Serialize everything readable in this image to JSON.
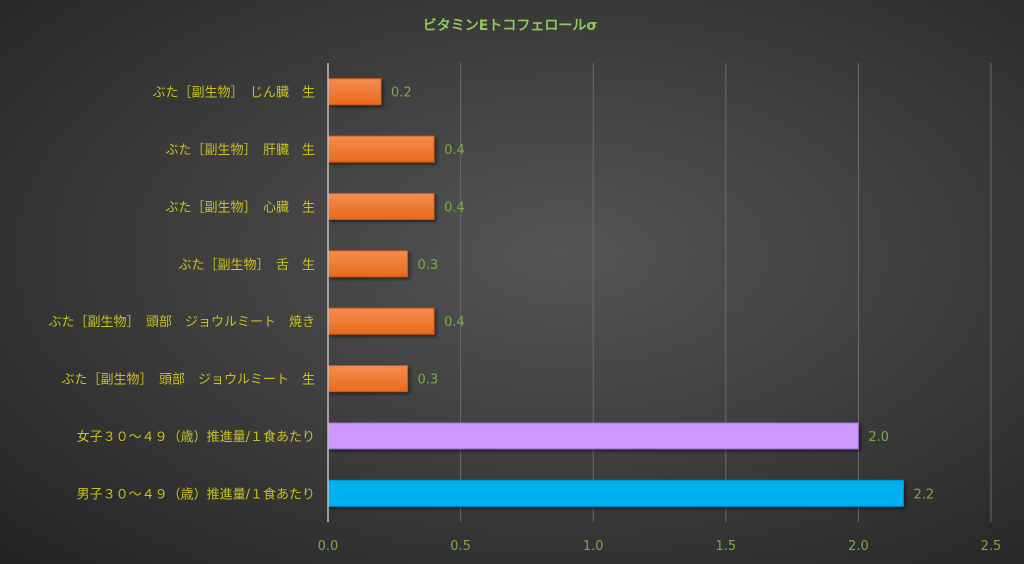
{
  "chart_data": {
    "type": "bar",
    "orientation": "horizontal",
    "title": "ビタミンEトコフェロールσ",
    "categories": [
      "ぶた［副生物］　じん臓　生",
      "ぶた［副生物］　肝臓　生",
      "ぶた［副生物］　心臓　生",
      "ぶた［副生物］　舌　生",
      "ぶた［副生物］　頭部　ジョウルミート　焼き",
      "ぶた［副生物］　頭部　ジョウルミート　生",
      "女子３０～４９（歳）推進量/１食あたり",
      "男子３０～４９（歳）推進量/１食あたり"
    ],
    "values": [
      0.2,
      0.4,
      0.4,
      0.3,
      0.4,
      0.3,
      2.0,
      2.17
    ],
    "data_labels": [
      "0.2",
      "0.4",
      "0.4",
      "0.3",
      "0.4",
      "0.3",
      "2.0",
      "2.2"
    ],
    "colors": [
      "#ef7a2e",
      "#ef7a2e",
      "#ef7a2e",
      "#ef7a2e",
      "#ef7a2e",
      "#ef7a2e",
      "#cc99ff",
      "#00b0f0"
    ],
    "xlim": [
      0,
      2.5
    ],
    "xticks": [
      "0.0",
      "0.5",
      "1.0",
      "1.5",
      "2.0",
      "2.5"
    ],
    "xtick_values": [
      0,
      0.5,
      1.0,
      1.5,
      2.0,
      2.5
    ],
    "grid": true,
    "legend": "none",
    "xlabel": "",
    "ylabel": ""
  }
}
